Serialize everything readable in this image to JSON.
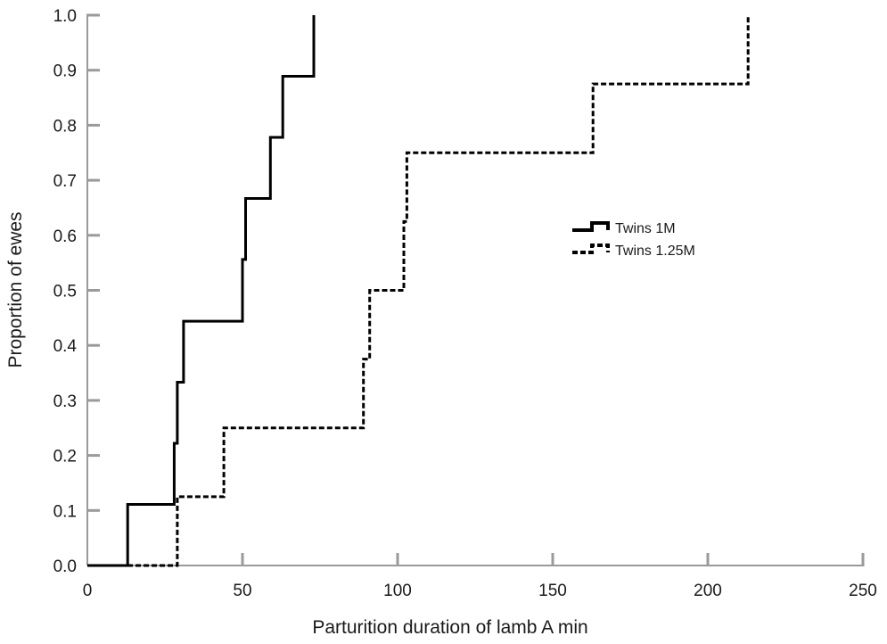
{
  "chart_data": {
    "type": "line",
    "step": true,
    "xlabel": "Parturition duration of lamb A min",
    "ylabel": "Proportion of ewes",
    "xlim": [
      0,
      250
    ],
    "ylim": [
      0,
      1.0
    ],
    "xticks": [
      0,
      50,
      100,
      150,
      200,
      250
    ],
    "xtick_labels": [
      "0",
      "50",
      "100",
      "150",
      "200",
      "250"
    ],
    "yticks": [
      0,
      0.1,
      0.2,
      0.3,
      0.4,
      0.5,
      0.6,
      0.7,
      0.8,
      0.9,
      1.0
    ],
    "ytick_labels": [
      "0.0",
      "0.1",
      "0.2",
      "0.3",
      "0.4",
      "0.5",
      "0.6",
      "0.7",
      "0.8",
      "0.9",
      "1.0"
    ],
    "grid": false,
    "legend_position": "right-center",
    "series": [
      {
        "name": "Twins 1M",
        "line_style": "solid",
        "color": "#000000",
        "x": [
          0,
          13,
          28,
          29,
          31,
          50,
          51,
          59,
          63,
          73
        ],
        "y": [
          0,
          0.111,
          0.222,
          0.333,
          0.444,
          0.556,
          0.667,
          0.778,
          0.889,
          1.0
        ]
      },
      {
        "name": "Twins 1.25M",
        "line_style": "dashed",
        "color": "#000000",
        "x": [
          0,
          29,
          44,
          89,
          91,
          102,
          103,
          163,
          213
        ],
        "y": [
          0,
          0.125,
          0.25,
          0.375,
          0.5,
          0.625,
          0.75,
          0.875,
          1.0
        ]
      }
    ]
  }
}
